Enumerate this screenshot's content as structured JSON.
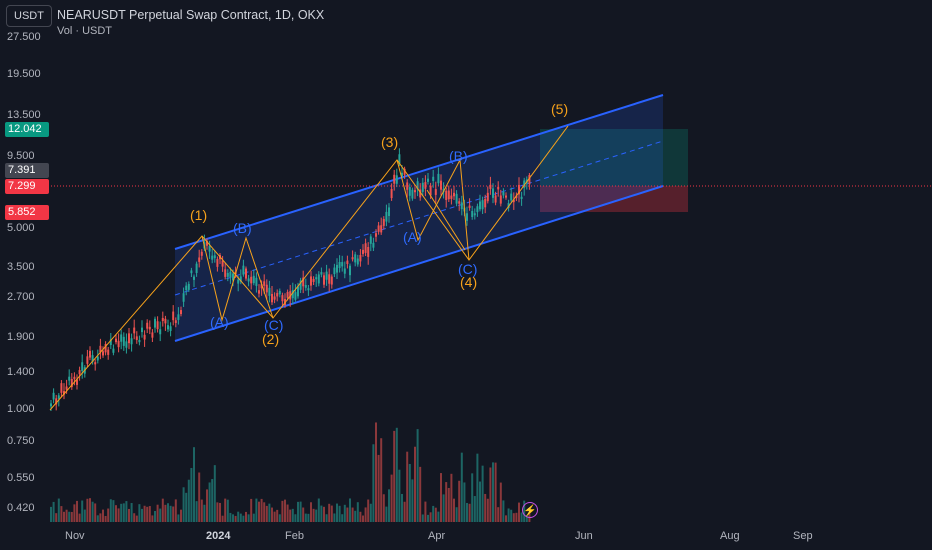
{
  "header": {
    "currency": "USDT",
    "title": "NEARUSDT Perpetual Swap Contract, 1D, OKX",
    "volume_label": "Vol · USDT"
  },
  "price_axis": {
    "labels": [
      "27.500",
      "19.500",
      "13.500",
      "9.500",
      "5.000",
      "3.500",
      "2.700",
      "1.900",
      "1.400",
      "1.000",
      "0.750",
      "0.550",
      "0.420"
    ],
    "badges": [
      {
        "value": "12.042",
        "color": "#089981"
      },
      {
        "value": "7.391",
        "color": "#434651"
      },
      {
        "value": "7.299",
        "color": "#f23645"
      },
      {
        "value": "5.852",
        "color": "#f23645"
      }
    ]
  },
  "time_axis": {
    "labels": [
      "Nov",
      "2024",
      "Feb",
      "Apr",
      "Jun",
      "Aug",
      "Sep"
    ]
  },
  "waves": [
    {
      "text": "(1)",
      "color": "orange"
    },
    {
      "text": "(2)",
      "color": "orange"
    },
    {
      "text": "(3)",
      "color": "orange"
    },
    {
      "text": "(4)",
      "color": "orange"
    },
    {
      "text": "(5)",
      "color": "orange"
    },
    {
      "text": "(A)",
      "color": "blue"
    },
    {
      "text": "(B)",
      "color": "blue"
    },
    {
      "text": "(C)",
      "color": "blue"
    },
    {
      "text": "(A)",
      "color": "blue"
    },
    {
      "text": "(B)",
      "color": "blue"
    },
    {
      "text": "(C)",
      "color": "blue"
    }
  ],
  "colors": {
    "background": "#131722",
    "up": "#26a69a",
    "down": "#ef5350",
    "channel": "#2962ff",
    "wave": "#f7a21b",
    "target_zone": "#089981",
    "stop_zone": "#f23645"
  },
  "chart_data": {
    "type": "candlestick",
    "symbol": "NEARUSDT",
    "interval": "1D",
    "exchange": "OKX",
    "y_scale": "log",
    "ylim": [
      0.38,
      30
    ],
    "last_price": 7.299,
    "target_price": 12.042,
    "stop_price": 5.852,
    "current_marker": 7.391,
    "x_ticks": [
      "Nov",
      "2024",
      "Feb",
      "Apr",
      "Jun",
      "Aug",
      "Sep"
    ],
    "wave_pivots": [
      {
        "label": "(1)",
        "date": "2023-12-25",
        "price": 4.6
      },
      {
        "label": "(2)",
        "date": "2024-01-23",
        "price": 2.35
      },
      {
        "label": "(3)",
        "date": "2024-03-14",
        "price": 9.0
      },
      {
        "label": "(4)",
        "date": "2024-04-13",
        "price": 4.0
      },
      {
        "label": "(5)",
        "date": "2024-05-20",
        "price": 12.0
      }
    ]
  }
}
